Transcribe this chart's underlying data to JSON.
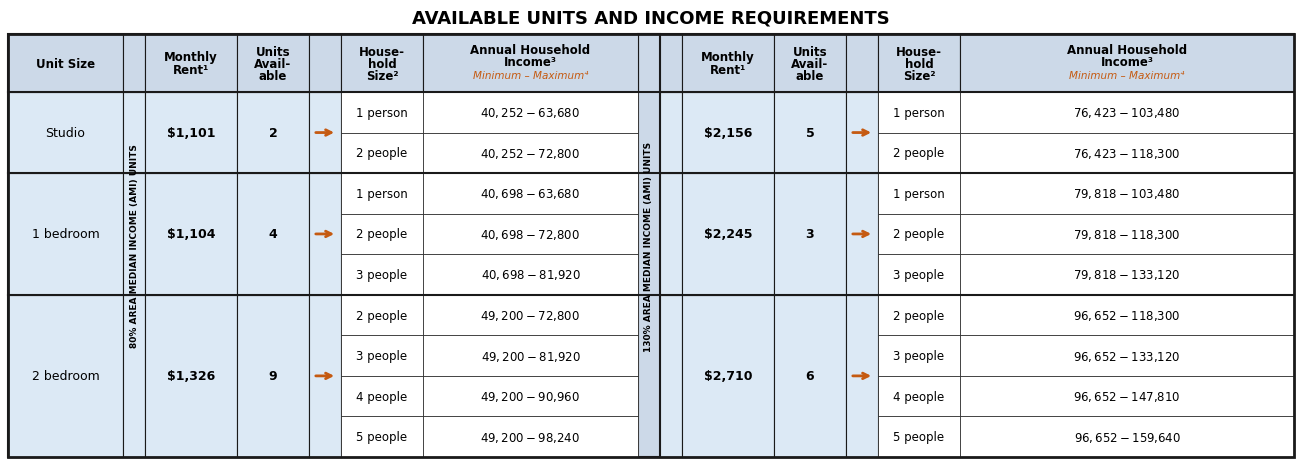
{
  "title": "AVAILABLE UNITS AND INCOME REQUIREMENTS",
  "title_fontsize": 13,
  "bg_color": "#ffffff",
  "header_bg": "#ccd9e8",
  "cell_bg": "#dce9f5",
  "white": "#ffffff",
  "border_color": "#1a1a1a",
  "orange_color": "#c55a11",
  "left_ami": "80% AREA MEDIAN INCOME (AMI) UNITS",
  "right_ami": "130% AREA MEDIAN INCOME (AMI) UNITS",
  "left_rows": [
    {
      "unit_size": "Studio",
      "rent": "$1,101",
      "units": "2",
      "household_rows": [
        {
          "size": "1 person",
          "income": "$40,252 - $63,680"
        },
        {
          "size": "2 people",
          "income": "$40,252 - $72,800"
        }
      ]
    },
    {
      "unit_size": "1 bedroom",
      "rent": "$1,104",
      "units": "4",
      "household_rows": [
        {
          "size": "1 person",
          "income": "$40,698 - $63,680"
        },
        {
          "size": "2 people",
          "income": "$40,698 - $72,800"
        },
        {
          "size": "3 people",
          "income": "$40,698 - $81,920"
        }
      ]
    },
    {
      "unit_size": "2 bedroom",
      "rent": "$1,326",
      "units": "9",
      "household_rows": [
        {
          "size": "2 people",
          "income": "$49,200 - $72,800"
        },
        {
          "size": "3 people",
          "income": "$49,200 - $81,920"
        },
        {
          "size": "4 people",
          "income": "$49,200 - $90,960"
        },
        {
          "size": "5 people",
          "income": "$49,200 - $98,240"
        }
      ]
    }
  ],
  "right_rows": [
    {
      "unit_size": "Studio",
      "rent": "$2,156",
      "units": "5",
      "household_rows": [
        {
          "size": "1 person",
          "income": "$76,423 - $103,480"
        },
        {
          "size": "2 people",
          "income": "$76,423 - $118,300"
        }
      ]
    },
    {
      "unit_size": "1 bedroom",
      "rent": "$2,245",
      "units": "3",
      "household_rows": [
        {
          "size": "1 person",
          "income": "$79,818 - $103,480"
        },
        {
          "size": "2 people",
          "income": "$79,818 - $118,300"
        },
        {
          "size": "3 people",
          "income": "$79,818 - $133,120"
        }
      ]
    },
    {
      "unit_size": "2 bedroom",
      "rent": "$2,710",
      "units": "6",
      "household_rows": [
        {
          "size": "2 people",
          "income": "$96,652 - $118,300"
        },
        {
          "size": "3 people",
          "income": "$96,652 - $133,120"
        },
        {
          "size": "4 people",
          "income": "$96,652 - $147,810"
        },
        {
          "size": "5 people",
          "income": "$96,652 - $159,640"
        }
      ]
    }
  ]
}
